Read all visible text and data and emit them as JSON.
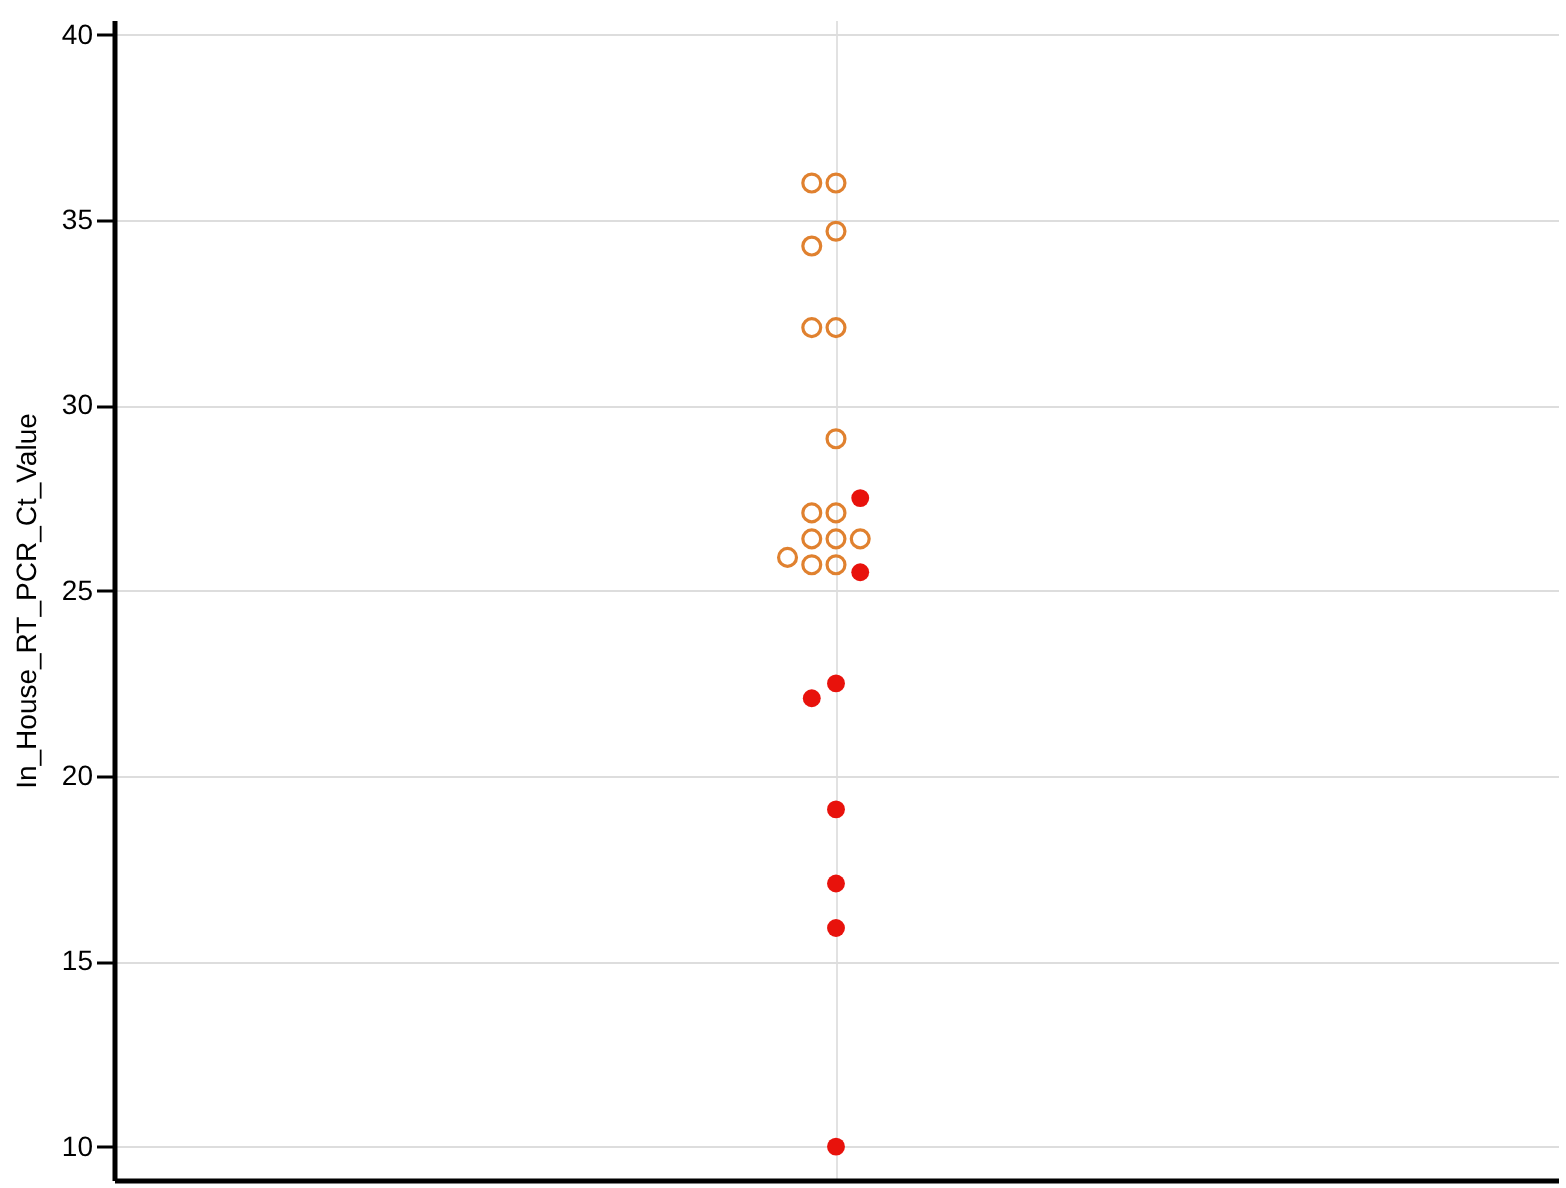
{
  "chart_data": {
    "type": "scatter",
    "ylabel": "In_House_RT_PCR_Ct_Value",
    "categories": [
      null
    ],
    "series": [
      {
        "color": "#e0812f",
        "marker": "circle",
        "x": [
          null,
          null,
          null,
          null,
          null,
          null,
          null,
          null,
          null,
          null,
          null,
          null,
          null,
          null,
          null
        ],
        "values": [
          36.0,
          36.0,
          34.7,
          34.3,
          32.1,
          32.1,
          29.1,
          27.1,
          27.1,
          26.4,
          26.4,
          26.4,
          25.9,
          25.7,
          25.7
        ]
      },
      {
        "color": "#e8120c",
        "marker": "circle",
        "x": [
          null,
          null,
          null,
          null,
          null,
          null,
          null,
          null
        ],
        "values": [
          27.5,
          25.5,
          22.5,
          22.1,
          19.1,
          17.1,
          15.9,
          10.0
        ]
      }
    ],
    "ylim": [
      9.1,
      40.4
    ],
    "yticks": [
      10,
      15,
      20,
      25,
      30,
      35,
      40
    ],
    "grid": true,
    "tick_labels": "y"
  }
}
